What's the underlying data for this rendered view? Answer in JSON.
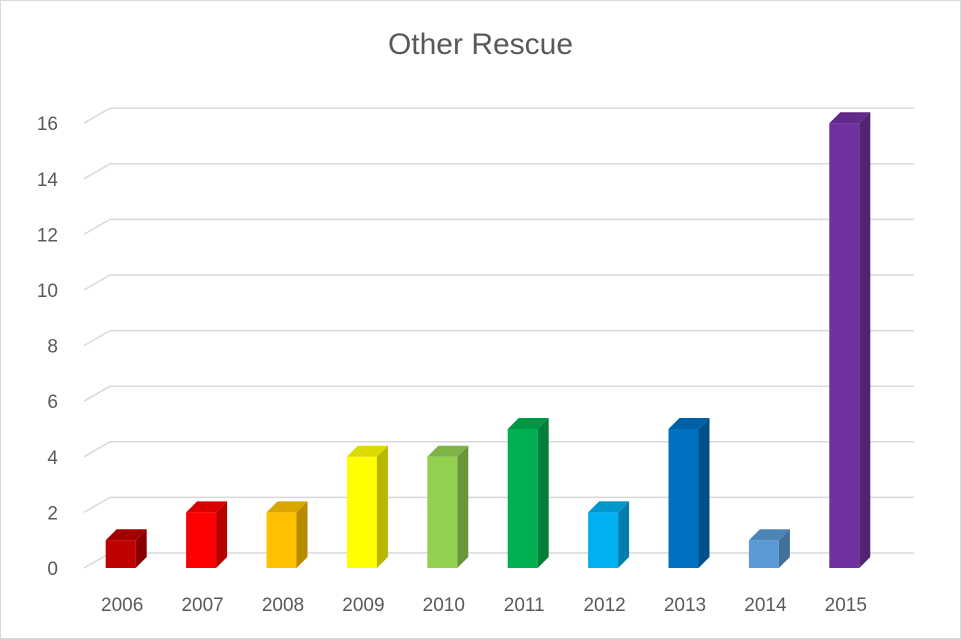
{
  "chart_data": {
    "type": "bar",
    "title": "Other Rescue",
    "xlabel": "",
    "ylabel": "",
    "categories": [
      "2006",
      "2007",
      "2008",
      "2009",
      "2010",
      "2011",
      "2012",
      "2013",
      "2014",
      "2015"
    ],
    "values": [
      1,
      2,
      2,
      4,
      4,
      5,
      2,
      5,
      1,
      16
    ],
    "colors": [
      "#C00000",
      "#FF0000",
      "#FFC000",
      "#FFFF00",
      "#92D050",
      "#00B050",
      "#00B0F0",
      "#0070C0",
      "#5B9BD5",
      "#7030A0"
    ],
    "ylim": [
      0,
      16
    ],
    "yticks": [
      "0",
      "2",
      "4",
      "6",
      "8",
      "10",
      "12",
      "14",
      "16"
    ],
    "grid": true,
    "legend": "none",
    "style": "3d-column"
  }
}
